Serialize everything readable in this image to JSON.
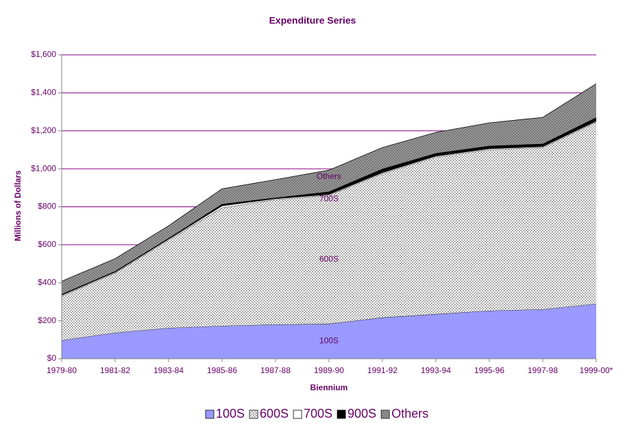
{
  "chart_data": {
    "type": "stacked_area",
    "title": "Expenditure Series",
    "x_label": "Biennium",
    "y_label": "Millions of Dollars",
    "categories": [
      "1979-80",
      "1981-82",
      "1983-84",
      "1985-86",
      "1987-88",
      "1989-90",
      "1991-92",
      "1993-94",
      "1995-96",
      "1997-98",
      "1999-00*"
    ],
    "series": [
      {
        "name": "100S",
        "color": "#9999ff",
        "values": [
          97,
          137,
          162,
          173,
          180,
          184,
          217,
          235,
          253,
          260,
          289
        ]
      },
      {
        "name": "600S",
        "color": "#ffffff",
        "pattern": "crosshatch",
        "values": [
          233,
          314,
          463,
          622,
          658,
          676,
          758,
          827,
          848,
          852,
          957
        ]
      },
      {
        "name": "700S",
        "color": "#ffffff",
        "values": [
          5,
          5,
          5,
          10,
          5,
          5,
          5,
          5,
          5,
          5,
          5
        ]
      },
      {
        "name": "900S",
        "color": "#000000",
        "values": [
          5,
          5,
          5,
          10,
          5,
          15,
          20,
          15,
          15,
          15,
          20
        ]
      },
      {
        "name": "Others",
        "color": "#999999",
        "pattern": "crosshatch",
        "values": [
          68,
          66,
          65,
          80,
          95,
          113,
          112,
          110,
          121,
          139,
          177
        ]
      }
    ],
    "annotations": [
      "Others",
      "700S",
      "600S",
      "100S"
    ],
    "ylim": [
      0,
      1600
    ],
    "yticks": [
      {
        "value": 0,
        "label": "$0"
      },
      {
        "value": 200,
        "label": "$200"
      },
      {
        "value": 400,
        "label": "$400"
      },
      {
        "value": 600,
        "label": "$600"
      },
      {
        "value": 800,
        "label": "$800"
      },
      {
        "value": 1000,
        "label": "$1,000"
      },
      {
        "value": 1200,
        "label": "$1,200"
      },
      {
        "value": 1400,
        "label": "$1,400"
      },
      {
        "value": 1600,
        "label": "$1,600"
      }
    ],
    "grid": true,
    "grid_color": "#800080",
    "legend": "bottom"
  }
}
